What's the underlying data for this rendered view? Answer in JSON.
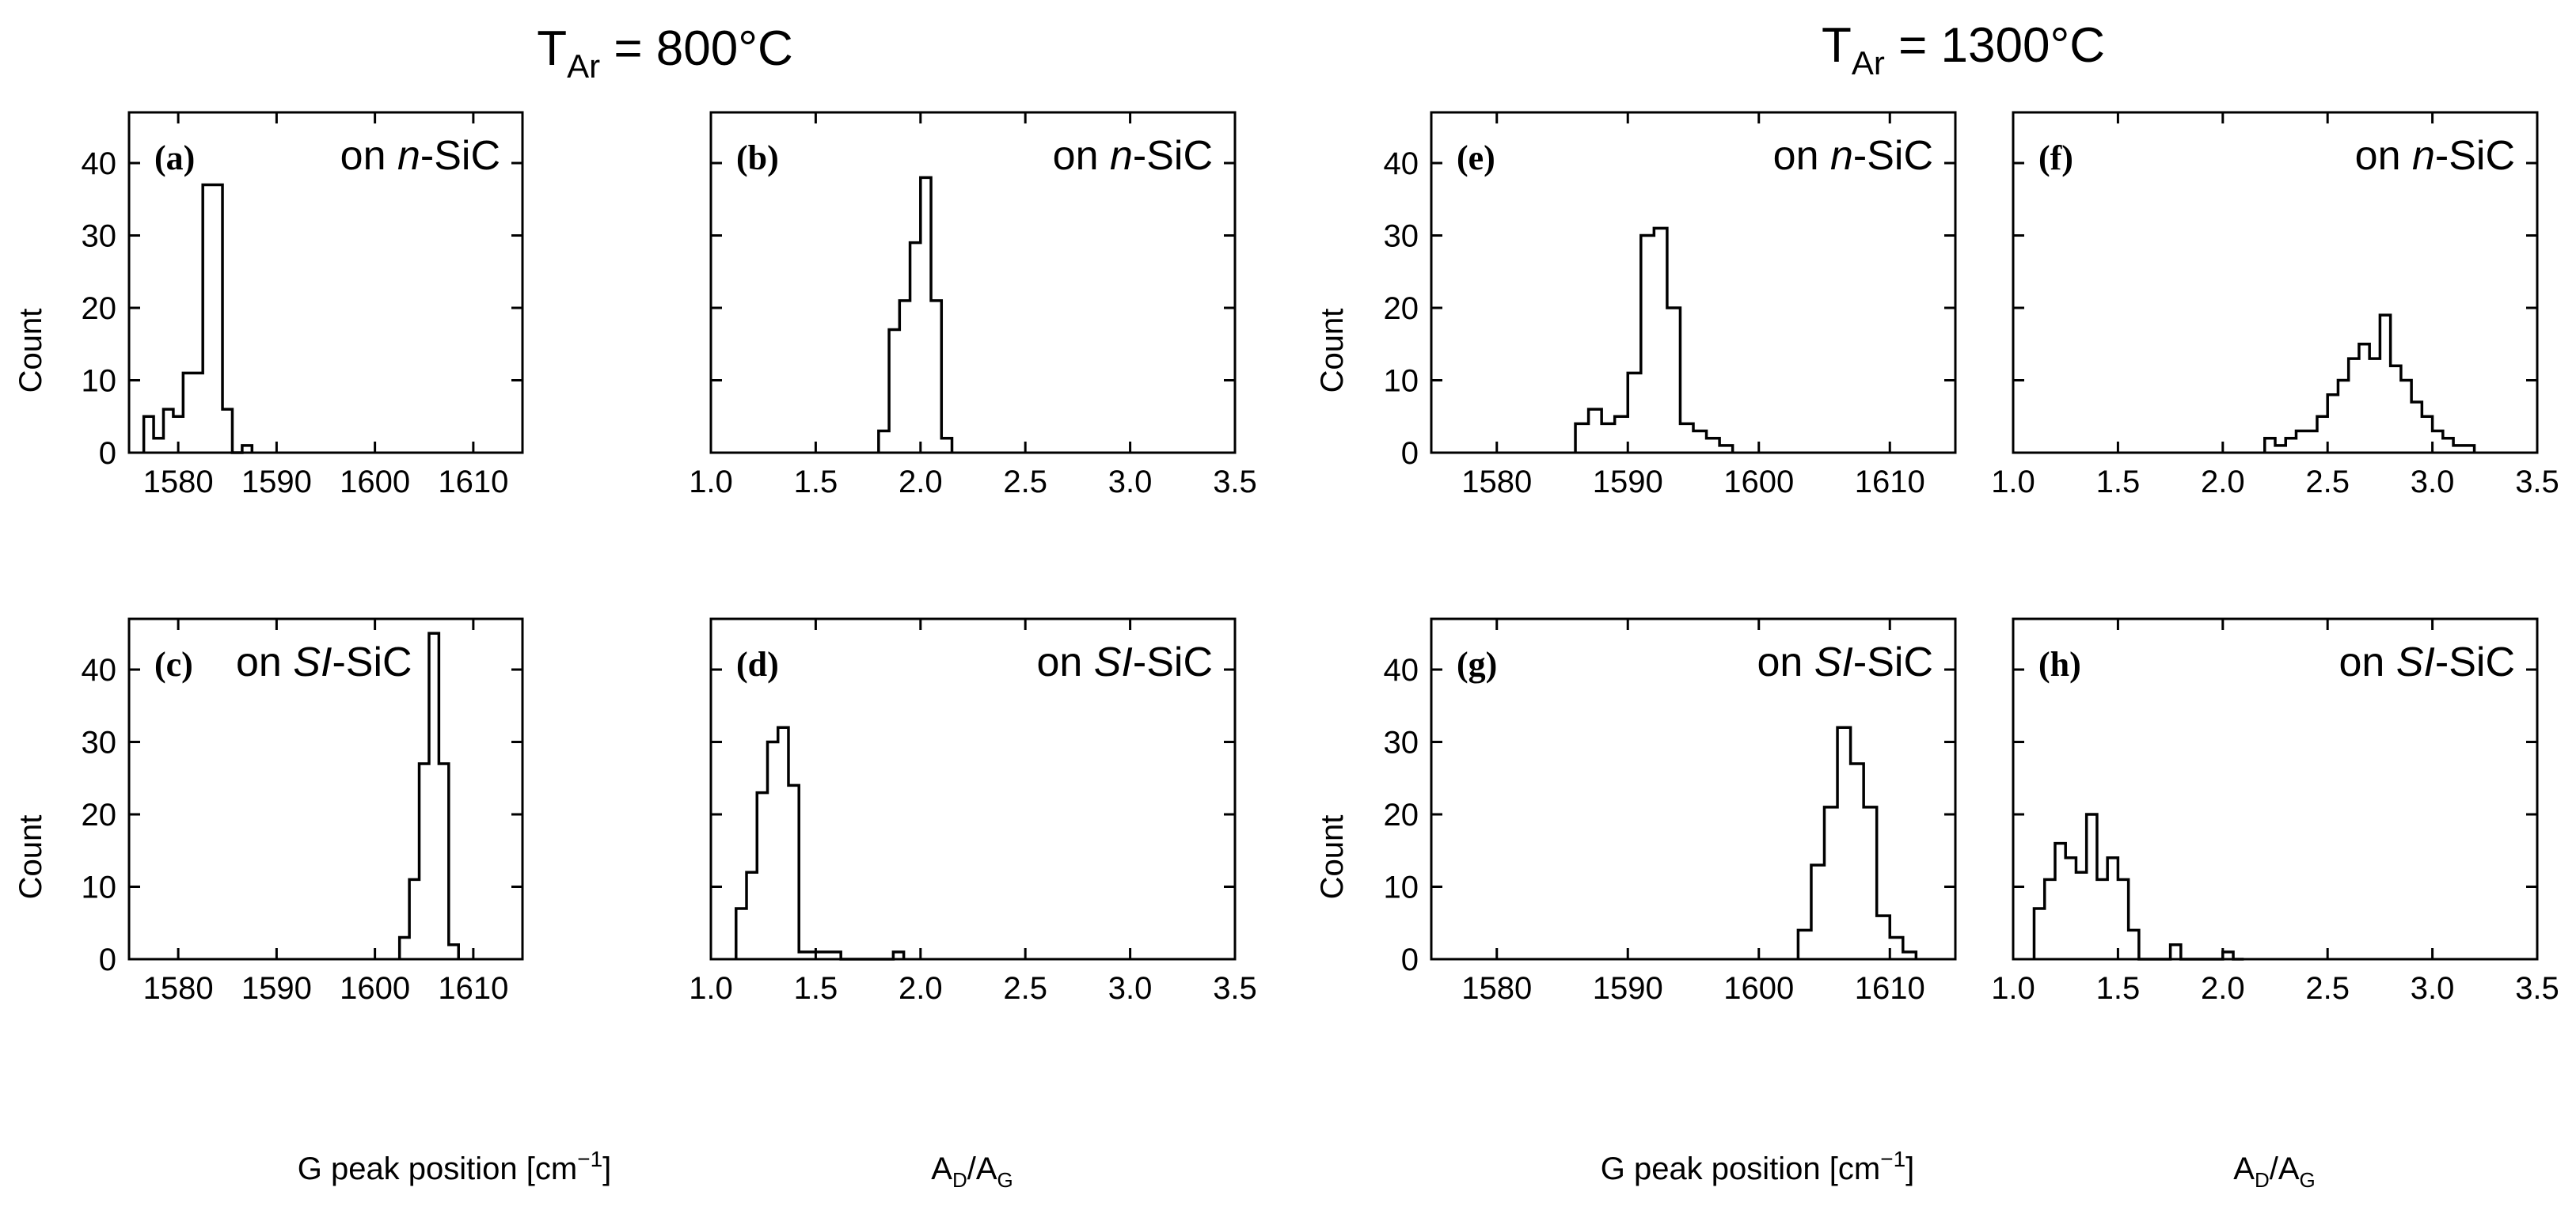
{
  "figure": {
    "group_titles": [
      {
        "main": "T",
        "sub": "Ar",
        "rest": " = 800°C"
      },
      {
        "main": "T",
        "sub": "Ar",
        "rest": " = 1300°C"
      }
    ],
    "ylabel": "Count",
    "xlabel_g": {
      "text": "G peak position [cm",
      "sup": "−1",
      "close": "]"
    },
    "xlabel_ratio": {
      "a": "A",
      "asub": "D",
      "slash": "/A",
      "gsub": "G"
    }
  },
  "chart_data": [
    {
      "id": "a",
      "type": "histogram",
      "letter": "(a)",
      "label": {
        "pre": "on ",
        "italic": "n",
        "post": "-SiC"
      },
      "xlim": [
        1575,
        1615
      ],
      "ylim": [
        0,
        47
      ],
      "xticks": [
        1580,
        1590,
        1600,
        1610
      ],
      "yticks": [
        0,
        10,
        20,
        30,
        40
      ],
      "edges": [
        1576.5,
        1577.5,
        1578.5,
        1579.5,
        1580.5,
        1582.5,
        1584.5,
        1585.5,
        1586.5,
        1587.5
      ],
      "counts": [
        5,
        2,
        6,
        5,
        11,
        37,
        6,
        0,
        1
      ]
    },
    {
      "id": "b",
      "type": "histogram",
      "letter": "(b)",
      "label": {
        "pre": "on ",
        "italic": "n",
        "post": "-SiC"
      },
      "xlim": [
        1.0,
        3.5
      ],
      "ylim": [
        0,
        47
      ],
      "xticks": [
        1.0,
        1.5,
        2.0,
        2.5,
        3.0,
        3.5
      ],
      "yticks": [
        0,
        10,
        20,
        30,
        40
      ],
      "edges": [
        1.8,
        1.85,
        1.9,
        1.95,
        2.0,
        2.05,
        2.1,
        2.15
      ],
      "counts": [
        3,
        17,
        21,
        29,
        38,
        21,
        2
      ]
    },
    {
      "id": "c",
      "type": "histogram",
      "letter": "(c)",
      "label": {
        "pre": "on ",
        "italic": "SI",
        "post": "-SiC"
      },
      "xlim": [
        1575,
        1615
      ],
      "ylim": [
        0,
        47
      ],
      "xticks": [
        1580,
        1590,
        1600,
        1610
      ],
      "yticks": [
        0,
        10,
        20,
        30,
        40
      ],
      "edges": [
        1602.5,
        1603.5,
        1604.5,
        1605.5,
        1606.5,
        1607.5,
        1608.5
      ],
      "counts": [
        3,
        11,
        27,
        45,
        27,
        2
      ]
    },
    {
      "id": "d",
      "type": "histogram",
      "letter": "(d)",
      "label": {
        "pre": "on ",
        "italic": "SI",
        "post": "-SiC"
      },
      "xlim": [
        1.0,
        3.5
      ],
      "ylim": [
        0,
        47
      ],
      "xticks": [
        1.0,
        1.5,
        2.0,
        2.5,
        3.0,
        3.5
      ],
      "yticks": [
        0,
        10,
        20,
        30,
        40
      ],
      "edges": [
        1.12,
        1.17,
        1.22,
        1.27,
        1.32,
        1.37,
        1.42,
        1.47,
        1.52,
        1.57,
        1.62,
        1.67,
        1.72,
        1.77,
        1.82,
        1.87,
        1.92
      ],
      "counts": [
        7,
        12,
        23,
        30,
        32,
        24,
        1,
        1,
        1,
        1,
        0,
        0,
        0,
        0,
        0,
        1
      ]
    },
    {
      "id": "e",
      "type": "histogram",
      "letter": "(e)",
      "label": {
        "pre": "on ",
        "italic": "n",
        "post": "-SiC"
      },
      "xlim": [
        1575,
        1615
      ],
      "ylim": [
        0,
        47
      ],
      "xticks": [
        1580,
        1590,
        1600,
        1610
      ],
      "yticks": [
        0,
        10,
        20,
        30,
        40
      ],
      "edges": [
        1586,
        1587,
        1588,
        1589,
        1590,
        1591,
        1592,
        1593,
        1594,
        1595,
        1596,
        1597,
        1598
      ],
      "counts": [
        4,
        6,
        4,
        5,
        11,
        30,
        31,
        20,
        4,
        3,
        2,
        1
      ]
    },
    {
      "id": "f",
      "type": "histogram",
      "letter": "(f)",
      "label": {
        "pre": "on ",
        "italic": "n",
        "post": "-SiC"
      },
      "xlim": [
        1.0,
        3.5
      ],
      "ylim": [
        0,
        47
      ],
      "xticks": [
        1.0,
        1.5,
        2.0,
        2.5,
        3.0,
        3.5
      ],
      "yticks": [
        0,
        10,
        20,
        30,
        40
      ],
      "edges": [
        2.2,
        2.25,
        2.3,
        2.35,
        2.4,
        2.45,
        2.5,
        2.55,
        2.6,
        2.65,
        2.7,
        2.75,
        2.8,
        2.85,
        2.9,
        2.95,
        3.0,
        3.05,
        3.1,
        3.15,
        3.2
      ],
      "counts": [
        2,
        1,
        2,
        3,
        3,
        5,
        8,
        10,
        13,
        15,
        13,
        19,
        12,
        10,
        7,
        5,
        3,
        2,
        1,
        1
      ]
    },
    {
      "id": "g",
      "type": "histogram",
      "letter": "(g)",
      "label": {
        "pre": "on ",
        "italic": "SI",
        "post": "-SiC"
      },
      "xlim": [
        1575,
        1615
      ],
      "ylim": [
        0,
        47
      ],
      "xticks": [
        1580,
        1590,
        1600,
        1610
      ],
      "yticks": [
        0,
        10,
        20,
        30,
        40
      ],
      "edges": [
        1603,
        1604,
        1605,
        1606,
        1607,
        1608,
        1609,
        1610,
        1611,
        1612
      ],
      "counts": [
        4,
        13,
        21,
        32,
        27,
        21,
        6,
        3,
        1
      ]
    },
    {
      "id": "h",
      "type": "histogram",
      "letter": "(h)",
      "label": {
        "pre": "on ",
        "italic": "SI",
        "post": "-SiC"
      },
      "xlim": [
        1.0,
        3.5
      ],
      "ylim": [
        0,
        47
      ],
      "xticks": [
        1.0,
        1.5,
        2.0,
        2.5,
        3.0,
        3.5
      ],
      "yticks": [
        0,
        10,
        20,
        30,
        40
      ],
      "edges": [
        1.1,
        1.15,
        1.2,
        1.25,
        1.3,
        1.35,
        1.4,
        1.45,
        1.5,
        1.55,
        1.6,
        1.65,
        1.7,
        1.75,
        1.8,
        1.85,
        1.9,
        1.95,
        2.0,
        2.05,
        2.1
      ],
      "counts": [
        7,
        11,
        16,
        14,
        12,
        20,
        11,
        14,
        11,
        4,
        0,
        0,
        0,
        2,
        0,
        0,
        0,
        0,
        1,
        0
      ]
    }
  ]
}
